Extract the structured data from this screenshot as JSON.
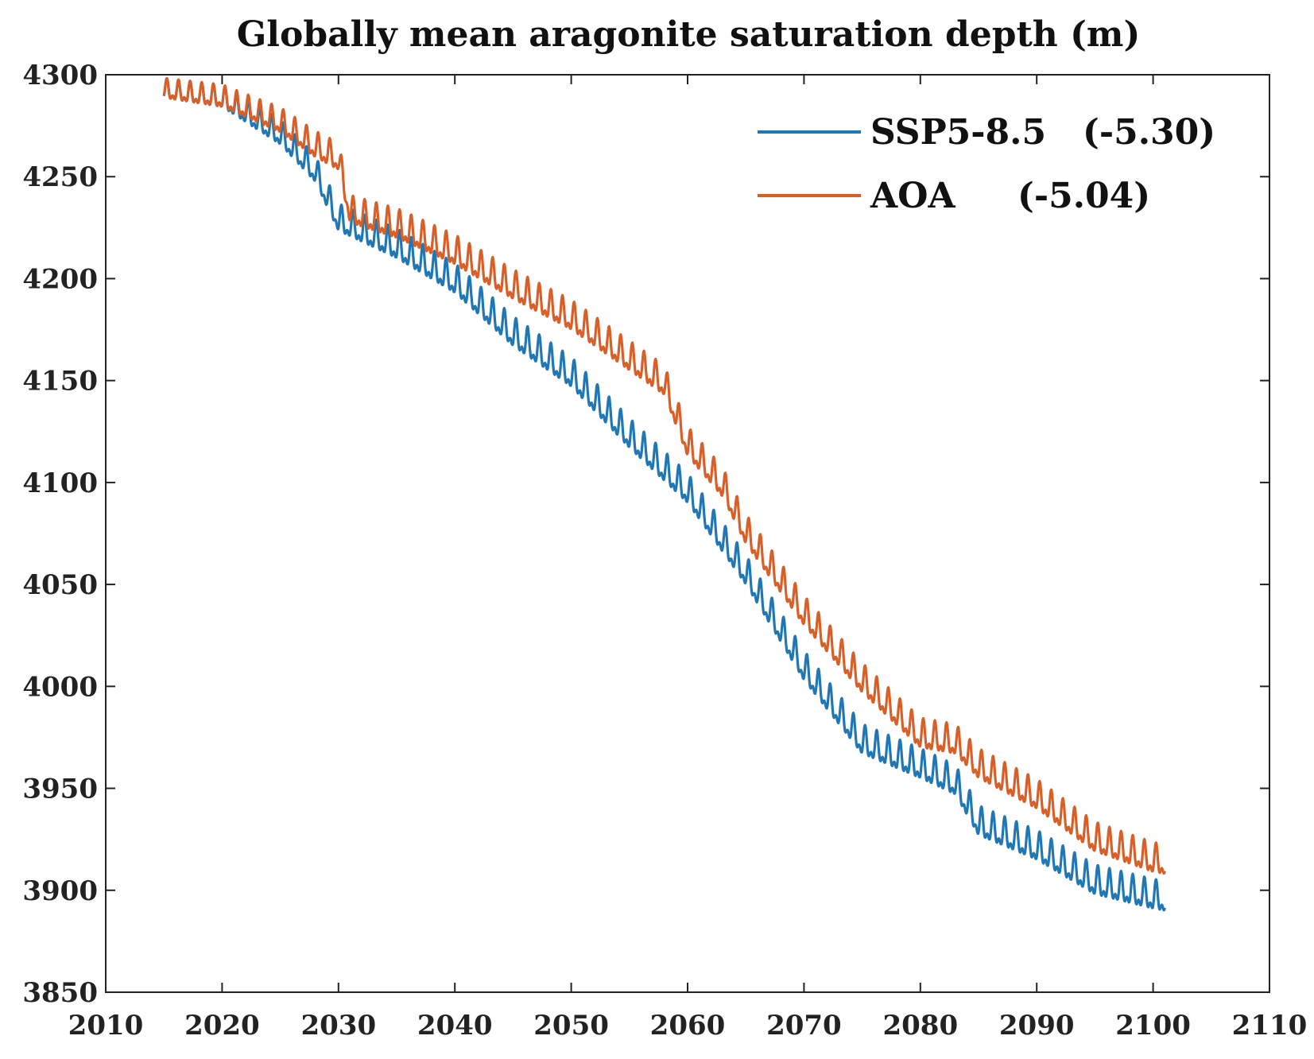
{
  "chart_data": {
    "type": "line",
    "title": "Globally mean aragonite saturation depth (m)",
    "xlabel": "",
    "ylabel": "",
    "xlim": [
      2010,
      2110
    ],
    "ylim": [
      3850,
      4300
    ],
    "xticks": [
      2010,
      2020,
      2030,
      2040,
      2050,
      2060,
      2070,
      2080,
      2090,
      2100,
      2110
    ],
    "yticks": [
      3850,
      3900,
      3950,
      4000,
      4050,
      4100,
      4150,
      4200,
      4250,
      4300
    ],
    "grid": false,
    "legend_position": "top-right",
    "series": [
      {
        "name": "SSP5-8.5",
        "legend_value": "(-5.30)",
        "color": "#1f77b4",
        "x": [
          2015,
          2020,
          2025,
          2028,
          2030,
          2035,
          2040,
          2045,
          2050,
          2055,
          2060,
          2065,
          2070,
          2075,
          2080,
          2083,
          2085,
          2090,
          2095,
          2100,
          2101
        ],
        "y": [
          4292,
          4288,
          4270,
          4252,
          4228,
          4215,
          4198,
          4172,
          4152,
          4122,
          4095,
          4055,
          4008,
          3972,
          3960,
          3952,
          3932,
          3920,
          3903,
          3896,
          3895
        ]
      },
      {
        "name": "AOA",
        "legend_value": "(-5.04)",
        "color": "#d95f28",
        "x": [
          2015,
          2020,
          2025,
          2028,
          2030,
          2031,
          2035,
          2040,
          2045,
          2050,
          2055,
          2058,
          2060,
          2063,
          2065,
          2070,
          2075,
          2080,
          2083,
          2085,
          2090,
          2095,
          2100,
          2101
        ],
        "y": [
          4292,
          4288,
          4276,
          4264,
          4258,
          4232,
          4225,
          4212,
          4195,
          4180,
          4160,
          4148,
          4118,
          4098,
          4075,
          4035,
          4002,
          3975,
          3972,
          3960,
          3945,
          3924,
          3914,
          3913
        ]
      }
    ]
  }
}
